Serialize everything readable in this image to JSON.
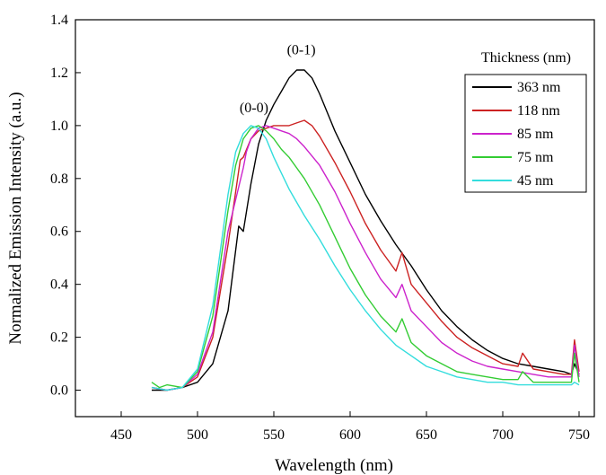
{
  "chart_data": {
    "type": "line",
    "title": "",
    "xlabel": "Wavelength (nm)",
    "ylabel": "Normalized Emission Intensity (a.u.)",
    "xlim": [
      420,
      760
    ],
    "ylim": [
      -0.1,
      1.4
    ],
    "xticks": [
      450,
      500,
      550,
      600,
      650,
      700,
      750
    ],
    "yticks": [
      0.0,
      0.2,
      0.4,
      0.6,
      0.8,
      1.0,
      1.2,
      1.4
    ],
    "x_tick_labels": [
      "450",
      "500",
      "550",
      "600",
      "650",
      "700",
      "750"
    ],
    "y_tick_labels": [
      "0.0",
      "0.2",
      "0.4",
      "0.6",
      "0.8",
      "1.0",
      "1.2",
      "1.4"
    ],
    "legend": {
      "title": "Thickness (nm)",
      "placement": "top-right"
    },
    "annotations": [
      {
        "text": "(0-1)",
        "x": 568,
        "y": 1.27
      },
      {
        "text": "(0-0)",
        "x": 537,
        "y": 1.05
      }
    ],
    "series": [
      {
        "name": "363 nm",
        "color": "#000000",
        "x": [
          470,
          480,
          490,
          500,
          510,
          520,
          527,
          530,
          535,
          540,
          545,
          550,
          555,
          560,
          565,
          570,
          575,
          580,
          590,
          600,
          610,
          620,
          630,
          640,
          650,
          660,
          670,
          680,
          690,
          700,
          710,
          720,
          730,
          740,
          745,
          747,
          750
        ],
        "y": [
          0.0,
          0.0,
          0.01,
          0.03,
          0.1,
          0.3,
          0.62,
          0.6,
          0.78,
          0.93,
          1.02,
          1.08,
          1.13,
          1.18,
          1.21,
          1.21,
          1.18,
          1.12,
          0.98,
          0.86,
          0.74,
          0.64,
          0.55,
          0.47,
          0.38,
          0.3,
          0.24,
          0.19,
          0.15,
          0.12,
          0.1,
          0.09,
          0.08,
          0.07,
          0.06,
          0.1,
          0.06
        ]
      },
      {
        "name": "118 nm",
        "color": "#cc2222",
        "x": [
          470,
          480,
          490,
          500,
          510,
          520,
          528,
          530,
          535,
          540,
          545,
          550,
          555,
          560,
          565,
          570,
          575,
          580,
          590,
          600,
          610,
          620,
          630,
          634,
          640,
          650,
          660,
          670,
          680,
          690,
          700,
          710,
          713,
          720,
          730,
          740,
          745,
          747,
          750
        ],
        "y": [
          0.01,
          0.0,
          0.01,
          0.05,
          0.2,
          0.55,
          0.87,
          0.88,
          0.95,
          0.98,
          0.99,
          1.0,
          1.0,
          1.0,
          1.01,
          1.02,
          1.0,
          0.96,
          0.86,
          0.75,
          0.63,
          0.53,
          0.45,
          0.52,
          0.4,
          0.33,
          0.26,
          0.2,
          0.16,
          0.13,
          0.1,
          0.09,
          0.14,
          0.08,
          0.07,
          0.06,
          0.06,
          0.19,
          0.07
        ]
      },
      {
        "name": "85 nm",
        "color": "#cc22cc",
        "x": [
          470,
          480,
          490,
          500,
          510,
          520,
          530,
          532,
          535,
          540,
          545,
          550,
          555,
          560,
          565,
          570,
          580,
          590,
          600,
          610,
          620,
          630,
          634,
          640,
          650,
          660,
          670,
          680,
          690,
          700,
          710,
          720,
          730,
          740,
          745,
          747,
          750
        ],
        "y": [
          0.01,
          0.0,
          0.01,
          0.06,
          0.22,
          0.6,
          0.84,
          0.9,
          0.95,
          0.99,
          1.0,
          0.99,
          0.98,
          0.97,
          0.95,
          0.92,
          0.85,
          0.75,
          0.63,
          0.52,
          0.42,
          0.35,
          0.4,
          0.3,
          0.24,
          0.18,
          0.14,
          0.11,
          0.09,
          0.08,
          0.07,
          0.06,
          0.05,
          0.05,
          0.05,
          0.17,
          0.05
        ]
      },
      {
        "name": "75 nm",
        "color": "#33cc33",
        "x": [
          470,
          475,
          480,
          490,
          500,
          510,
          520,
          525,
          530,
          535,
          540,
          545,
          550,
          555,
          560,
          565,
          570,
          580,
          590,
          600,
          610,
          620,
          630,
          634,
          640,
          650,
          660,
          670,
          680,
          690,
          700,
          710,
          713,
          720,
          730,
          740,
          745,
          747,
          750
        ],
        "y": [
          0.03,
          0.01,
          0.02,
          0.01,
          0.07,
          0.28,
          0.68,
          0.85,
          0.95,
          0.99,
          1.0,
          0.98,
          0.95,
          0.91,
          0.88,
          0.84,
          0.8,
          0.7,
          0.58,
          0.46,
          0.36,
          0.28,
          0.22,
          0.27,
          0.18,
          0.13,
          0.1,
          0.07,
          0.06,
          0.05,
          0.04,
          0.04,
          0.07,
          0.03,
          0.03,
          0.03,
          0.03,
          0.14,
          0.03
        ]
      },
      {
        "name": "45 nm",
        "color": "#33dddd",
        "x": [
          470,
          480,
          490,
          500,
          510,
          520,
          525,
          530,
          535,
          540,
          545,
          550,
          555,
          560,
          570,
          580,
          590,
          600,
          610,
          620,
          630,
          640,
          650,
          660,
          670,
          680,
          690,
          700,
          710,
          720,
          730,
          740,
          745,
          747,
          750
        ],
        "y": [
          0.01,
          0.0,
          0.01,
          0.08,
          0.32,
          0.74,
          0.9,
          0.97,
          1.0,
          0.99,
          0.95,
          0.88,
          0.82,
          0.76,
          0.66,
          0.57,
          0.47,
          0.38,
          0.3,
          0.23,
          0.17,
          0.13,
          0.09,
          0.07,
          0.05,
          0.04,
          0.03,
          0.03,
          0.02,
          0.02,
          0.02,
          0.02,
          0.02,
          0.03,
          0.02
        ]
      }
    ]
  }
}
